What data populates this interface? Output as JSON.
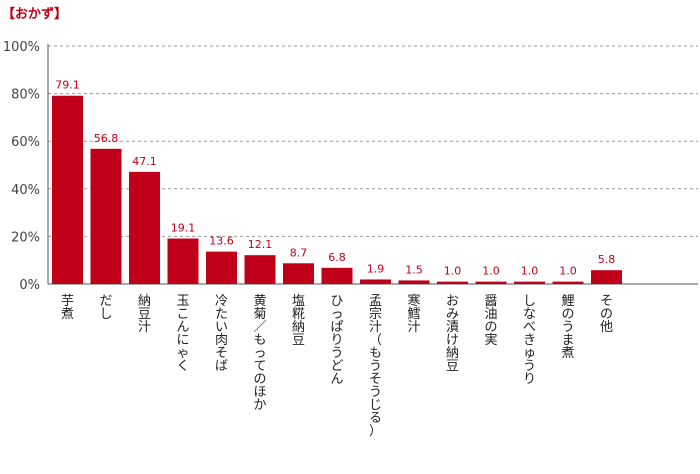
{
  "chart_data": {
    "type": "bar",
    "title": "【おかず】",
    "categories": [
      "芋煮",
      "だし",
      "納豆汁",
      "玉こんにゃく",
      "冷たい肉そば",
      "黄菊／もってのほか",
      "塩糀納豆",
      "ひっぱりうどん",
      "孟宗汁（もうそうじる）",
      "寒鱈汁",
      "おみ漬け納豆",
      "醤油の実",
      "しなべきゅうり",
      "鯉のうま煮",
      "その他"
    ],
    "values": [
      79.1,
      56.8,
      47.1,
      19.1,
      13.6,
      12.1,
      8.7,
      6.8,
      1.9,
      1.5,
      1.0,
      1.0,
      1.0,
      1.0,
      5.8
    ],
    "value_labels": [
      "79.1",
      "56.8",
      "47.1",
      "19.1",
      "13.6",
      "12.1",
      "8.7",
      "6.8",
      "1.9",
      "1.5",
      "1.0",
      "1.0",
      "1.0",
      "1.0",
      "5.8"
    ],
    "y_ticks": [
      "0%",
      "20%",
      "40%",
      "60%",
      "80%",
      "100%"
    ],
    "ylim": [
      0,
      100
    ],
    "xlabel": "",
    "ylabel": "",
    "grid": true,
    "bar_color": "#c00018",
    "label_color": "#c00018"
  }
}
